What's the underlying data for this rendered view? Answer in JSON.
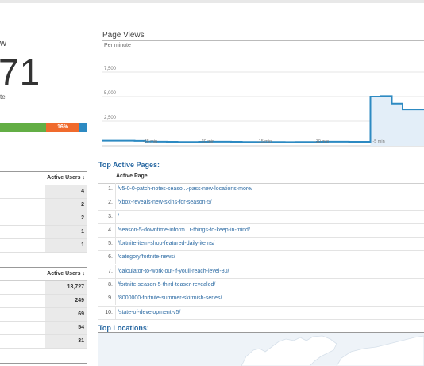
{
  "right_now": {
    "label": "w",
    "count": "71",
    "sub": "te"
  },
  "device_bar": {
    "segments": [
      {
        "color": "#63ae45",
        "label": ""
      },
      {
        "color": "#f06b2d",
        "label": "16%"
      },
      {
        "color": "#2d8ac2",
        "label": ""
      }
    ]
  },
  "top_referrals": {
    "header": "Active Users ↓",
    "values": [
      "4",
      "2",
      "2",
      "1",
      "1"
    ]
  },
  "top_social": {
    "header": "Active Users ↓",
    "values": [
      "13,727",
      "249",
      "69",
      "54",
      "31"
    ]
  },
  "page_views": {
    "title": "Page Views",
    "subtitle": "Per minute"
  },
  "chart_data": {
    "type": "area",
    "title": "Page Views",
    "subtitle": "Per minute",
    "y_tick_labels": [
      "7,500",
      "5,000",
      "2,500"
    ],
    "ylim": [
      0,
      10000
    ],
    "x_tick_labels": [
      "-25 min",
      "-20 min",
      "-15 min",
      "-10 min",
      "-5 min"
    ],
    "series": [
      {
        "values": [
          520,
          520,
          520,
          490,
          430,
          410,
          400,
          390,
          390,
          400,
          410,
          410,
          400,
          390,
          390,
          380,
          380,
          370,
          380,
          390,
          400,
          410,
          410,
          400,
          400,
          5000,
          5050,
          4300,
          3700,
          3700
        ]
      }
    ],
    "color": "#2d8ac2",
    "grid": true
  },
  "top_active_pages": {
    "title": "Top Active Pages:",
    "header": "Active Page",
    "rows": [
      {
        "num": "1.",
        "page": "/v5-0-0-patch-notes-seaso...-pass-new-locations-more/"
      },
      {
        "num": "2.",
        "page": "/xbox-reveals-new-skins-for-season-5/"
      },
      {
        "num": "3.",
        "page": "/"
      },
      {
        "num": "4.",
        "page": "/season-5-downtime-inform...r-things-to-keep-in-mind/"
      },
      {
        "num": "5.",
        "page": "/fortnite-item-shop-featured-daily-items/"
      },
      {
        "num": "6.",
        "page": "/category/fortnite-news/"
      },
      {
        "num": "7.",
        "page": "/calculator-to-work-out-if-youll-reach-level-80/"
      },
      {
        "num": "8.",
        "page": "/fortnite-season-5-third-teaser-revealed/"
      },
      {
        "num": "9.",
        "page": "/8000000-fortnite-summer-skirmish-series/"
      },
      {
        "num": "10.",
        "page": "/state-of-development-v5/"
      }
    ]
  },
  "top_locations": {
    "title": "Top Locations:"
  }
}
